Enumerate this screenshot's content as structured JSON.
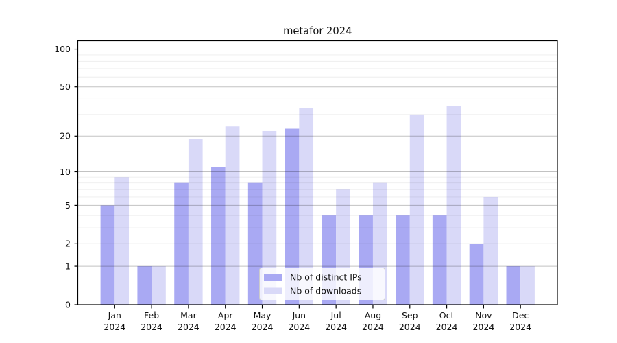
{
  "title": "metafor 2024",
  "colors": {
    "ips_bar": "#a9a9f3",
    "downloads_bar": "#d9d9f8",
    "axis": "#000000",
    "major_grid": "rgba(0,0,0,0.24)",
    "minor_grid": "rgba(0,0,0,0.07)",
    "legend_border": "#cccccc",
    "legend_background": "rgba(255,255,255,0.8)",
    "background": "#ffffff",
    "text": "#111111"
  },
  "y_axis": {
    "ticks": [
      {
        "label": "0",
        "value": 0
      },
      {
        "label": "1",
        "value": 1
      },
      {
        "label": "2",
        "value": 2
      },
      {
        "label": "5",
        "value": 5
      },
      {
        "label": "10",
        "value": 10
      },
      {
        "label": "20",
        "value": 20
      },
      {
        "label": "50",
        "value": 50
      },
      {
        "label": "100",
        "value": 100
      }
    ],
    "minor_values": [
      3,
      4,
      6,
      7,
      8,
      9,
      30,
      40,
      60,
      70,
      80,
      90
    ],
    "scale": "log1p"
  },
  "x_axis": {
    "labels": [
      {
        "line1": "Jan",
        "line2": "2024"
      },
      {
        "line1": "Feb",
        "line2": "2024"
      },
      {
        "line1": "Mar",
        "line2": "2024"
      },
      {
        "line1": "Apr",
        "line2": "2024"
      },
      {
        "line1": "May",
        "line2": "2024"
      },
      {
        "line1": "Jun",
        "line2": "2024"
      },
      {
        "line1": "Jul",
        "line2": "2024"
      },
      {
        "line1": "Aug",
        "line2": "2024"
      },
      {
        "line1": "Sep",
        "line2": "2024"
      },
      {
        "line1": "Oct",
        "line2": "2024"
      },
      {
        "line1": "Nov",
        "line2": "2024"
      },
      {
        "line1": "Dec",
        "line2": "2024"
      }
    ]
  },
  "legend": {
    "items": [
      {
        "label": "Nb of distinct IPs",
        "swatch": "#a9a9f3",
        "series_key": "ips"
      },
      {
        "label": "Nb of downloads",
        "swatch": "#d9d9f8",
        "series_key": "downloads"
      }
    ]
  },
  "chart_data": {
    "type": "bar",
    "title": "metafor 2024",
    "categories": [
      "Jan 2024",
      "Feb 2024",
      "Mar 2024",
      "Apr 2024",
      "May 2024",
      "Jun 2024",
      "Jul 2024",
      "Aug 2024",
      "Sep 2024",
      "Oct 2024",
      "Nov 2024",
      "Dec 2024"
    ],
    "series": [
      {
        "name": "Nb of distinct IPs",
        "key": "ips",
        "values": [
          5,
          1,
          8,
          11,
          8,
          23,
          4,
          4,
          4,
          4,
          2,
          1
        ]
      },
      {
        "name": "Nb of downloads",
        "key": "downloads",
        "values": [
          9,
          1,
          19,
          24,
          22,
          34,
          7,
          8,
          30,
          35,
          6,
          1
        ]
      }
    ],
    "xlabel": "",
    "ylabel": "",
    "yscale": "log1p",
    "y_tick_values": [
      0,
      1,
      2,
      5,
      10,
      20,
      50,
      100
    ],
    "ylim_top_approx": 115,
    "grid": "on",
    "legend_position": "lower center"
  }
}
